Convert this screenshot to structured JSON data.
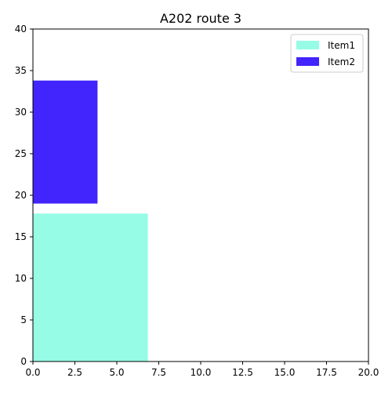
{
  "chart_data": {
    "type": "bar",
    "title": "A202 route 3",
    "xlabel": "",
    "ylabel": "",
    "xlim": [
      0,
      20
    ],
    "ylim": [
      0,
      40
    ],
    "xticks": [
      "0.0",
      "2.5",
      "5.0",
      "7.5",
      "10.0",
      "12.5",
      "15.0",
      "17.5",
      "20.0"
    ],
    "yticks": [
      "0",
      "5",
      "10",
      "15",
      "20",
      "25",
      "30",
      "35",
      "40"
    ],
    "grid": false,
    "legend_position": "top-right",
    "series": [
      {
        "name": "Item1",
        "color": "#96fce6",
        "x": 0,
        "width": 6.85,
        "bottom": 0,
        "height": 17.8
      },
      {
        "name": "Item2",
        "color": "#4224fc",
        "x": 0,
        "width": 3.85,
        "bottom": 19.0,
        "height": 14.8
      }
    ]
  }
}
